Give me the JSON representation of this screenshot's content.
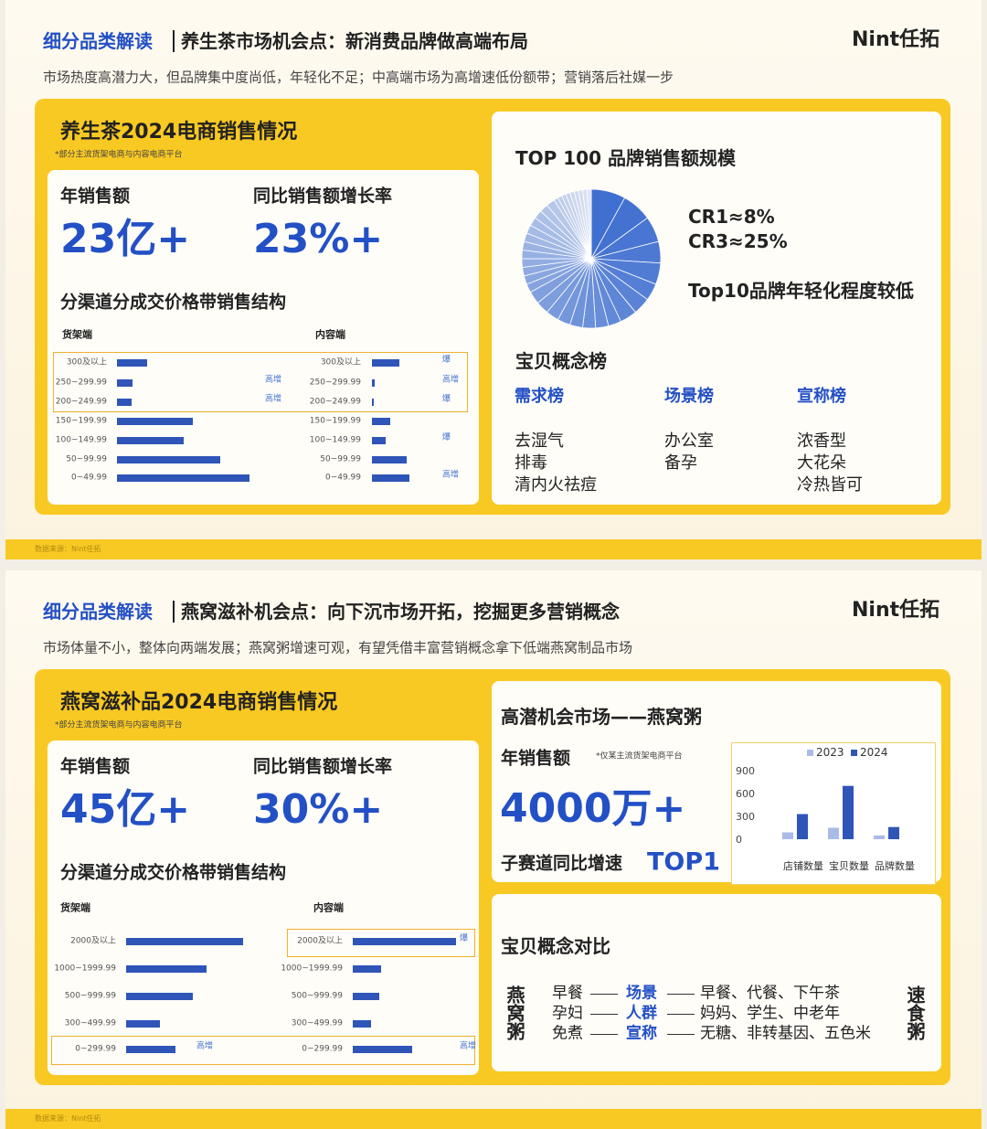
{
  "slides": [
    {
      "section": "细分品类解读",
      "title": "养生茶市场机会点：新消费品牌做高端布局",
      "logo": "Nint任拓",
      "subtitle": "市场热度高潜力大，但品牌集中度尚低，年轻化不足；中高端市场为高增速低份额带；营销落后社媒一步",
      "source": "数据来源：Nint任拓",
      "left": {
        "heading": "养生茶2024电商销售情况",
        "note": "*部分主流货架电商与内容电商平台",
        "metrics": [
          {
            "label": "年销售额",
            "value": "23亿+"
          },
          {
            "label": "同比销售额增长率",
            "value": "23%+"
          }
        ],
        "structure_title": "分渠道分成交价格带销售结构",
        "channels": [
          {
            "name": "货架端",
            "categories": [
              "300及以上",
              "250~299.99",
              "200~249.99",
              "150~199.99",
              "100~149.99",
              "50~99.99",
              "0~49.99"
            ],
            "values": [
              23,
              12,
              11,
              57,
              50,
              78,
              100
            ],
            "annotations": [
              null,
              "高增",
              "高增",
              null,
              null,
              null,
              null
            ]
          },
          {
            "name": "内容端",
            "categories": [
              "300及以上",
              "250~299.99",
              "200~249.99",
              "150~199.99",
              "100~149.99",
              "50~99.99",
              "0~49.99"
            ],
            "values": [
              21,
              2,
              1.5,
              14,
              10,
              26,
              28
            ],
            "annotations": [
              "爆",
              "高增",
              "爆",
              null,
              "爆",
              null,
              "高增"
            ]
          }
        ]
      },
      "right": {
        "pie_title": "TOP 100 品牌销售额规模",
        "pie_values": [
          8,
          7,
          6,
          5,
          5,
          4,
          4,
          4,
          3,
          3,
          3,
          3,
          3,
          3,
          3,
          3,
          2,
          2,
          2,
          2,
          2,
          2,
          2,
          2,
          2,
          2,
          2,
          2,
          1,
          1,
          1,
          1,
          1,
          1,
          1,
          1,
          1
        ],
        "pie_color": "#3f6fd0",
        "notes": [
          "CR1≈8%",
          "CR3≈25%",
          "Top10品牌年轻化程度较低"
        ],
        "concept_title": "宝贝概念榜",
        "lists": [
          {
            "name": "需求榜",
            "items": [
              "去湿气",
              "排毒",
              "清内火祛痘"
            ]
          },
          {
            "name": "场景榜",
            "items": [
              "办公室",
              "备孕"
            ]
          },
          {
            "name": "宣称榜",
            "items": [
              "浓香型",
              "大花朵",
              "冷热皆可"
            ]
          }
        ]
      }
    },
    {
      "section": "细分品类解读",
      "title": "燕窝滋补机会点：向下沉市场开拓，挖掘更多营销概念",
      "logo": "Nint任拓",
      "subtitle": "市场体量不小，整体向两端发展；燕窝粥增速可观，有望凭借丰富营销概念拿下低端燕窝制品市场",
      "source": "数据来源：Nint任拓",
      "left": {
        "heading": "燕窝滋补品2024电商销售情况",
        "note": "*部分主流货架电商与内容电商平台",
        "metrics": [
          {
            "label": "年销售额",
            "value": "45亿+"
          },
          {
            "label": "同比销售额增长率",
            "value": "30%+"
          }
        ],
        "structure_title": "分渠道分成交价格带销售结构",
        "channels": [
          {
            "name": "货架端",
            "categories": [
              "2000及以上",
              "1000~1999.99",
              "500~999.99",
              "300~499.99",
              "0~299.99"
            ],
            "values": [
              100,
              69,
              57,
              29,
              42
            ],
            "annotations": [
              null,
              null,
              null,
              null,
              "高增"
            ]
          },
          {
            "name": "内容端",
            "categories": [
              "2000及以上",
              "1000~1999.99",
              "500~999.99",
              "300~499.99",
              "0~299.99"
            ],
            "values": [
              88,
              24,
              23,
              16,
              51
            ],
            "annotations": [
              "爆",
              null,
              null,
              null,
              "高增"
            ]
          }
        ]
      },
      "right": {
        "market_title": "高潜机会市场——燕窝粥",
        "sales_label": "年销售额",
        "sales_note": "*仅某主流货架电商平台",
        "sales_value": "4000万+",
        "growth_label": "子赛道同比增速",
        "growth_value": "TOP1",
        "chart_data": {
          "type": "bar",
          "categories": [
            "店铺数量",
            "宝贝数量",
            "品牌数量"
          ],
          "series": [
            {
              "name": "2023",
              "color": "#a9bbe6",
              "values": [
                90,
                150,
                50
              ]
            },
            {
              "name": "2024",
              "color": "#2f55b8",
              "values": [
                330,
                700,
                160
              ]
            }
          ],
          "ylim": [
            0,
            900
          ],
          "yticks": [
            0,
            300,
            600,
            900
          ]
        },
        "concept_title": "宝贝概念对比",
        "left_name": "燕窝粥",
        "right_name": "速食粥",
        "rows": [
          {
            "left": "早餐",
            "term": "场景",
            "right": "早餐、代餐、下午茶"
          },
          {
            "left": "孕妇",
            "term": "人群",
            "right": "妈妈、学生、中老年"
          },
          {
            "left": "免煮",
            "term": "宣称",
            "right": "无糖、非转基因、五色米"
          }
        ]
      }
    }
  ]
}
